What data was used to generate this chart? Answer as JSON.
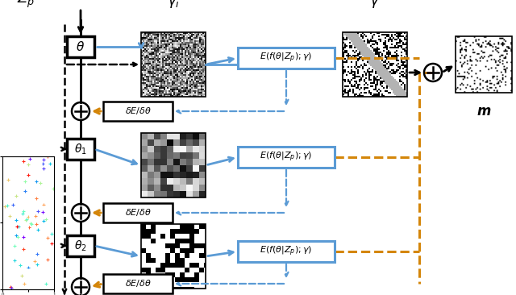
{
  "bg_color": "#ffffff",
  "fig_width": 6.4,
  "fig_height": 3.66,
  "dpi": 100,
  "colors": {
    "black": "#000000",
    "blue": "#5B9BD5",
    "orange": "#D4860A"
  }
}
